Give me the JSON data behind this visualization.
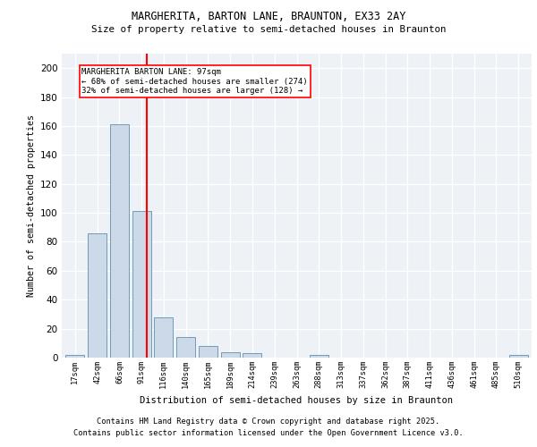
{
  "title1": "MARGHERITA, BARTON LANE, BRAUNTON, EX33 2AY",
  "title2": "Size of property relative to semi-detached houses in Braunton",
  "xlabel": "Distribution of semi-detached houses by size in Braunton",
  "ylabel": "Number of semi-detached properties",
  "bin_labels": [
    "17sqm",
    "42sqm",
    "66sqm",
    "91sqm",
    "116sqm",
    "140sqm",
    "165sqm",
    "189sqm",
    "214sqm",
    "239sqm",
    "263sqm",
    "288sqm",
    "313sqm",
    "337sqm",
    "362sqm",
    "387sqm",
    "411sqm",
    "436sqm",
    "461sqm",
    "485sqm",
    "510sqm"
  ],
  "bar_heights": [
    2,
    86,
    161,
    101,
    28,
    14,
    8,
    4,
    3,
    0,
    0,
    2,
    0,
    0,
    0,
    0,
    0,
    0,
    0,
    0,
    2
  ],
  "bar_color": "#ccd9e8",
  "bar_edge_color": "#6090b0",
  "red_line_x": 3.62,
  "annotation_title": "MARGHERITA BARTON LANE: 97sqm",
  "annotation_line1": "← 68% of semi-detached houses are smaller (274)",
  "annotation_line2": "32% of semi-detached houses are larger (128) →",
  "footer1": "Contains HM Land Registry data © Crown copyright and database right 2025.",
  "footer2": "Contains public sector information licensed under the Open Government Licence v3.0.",
  "ylim": [
    0,
    210
  ],
  "yticks": [
    0,
    20,
    40,
    60,
    80,
    100,
    120,
    140,
    160,
    180,
    200
  ],
  "bg_color": "#eef2f7"
}
